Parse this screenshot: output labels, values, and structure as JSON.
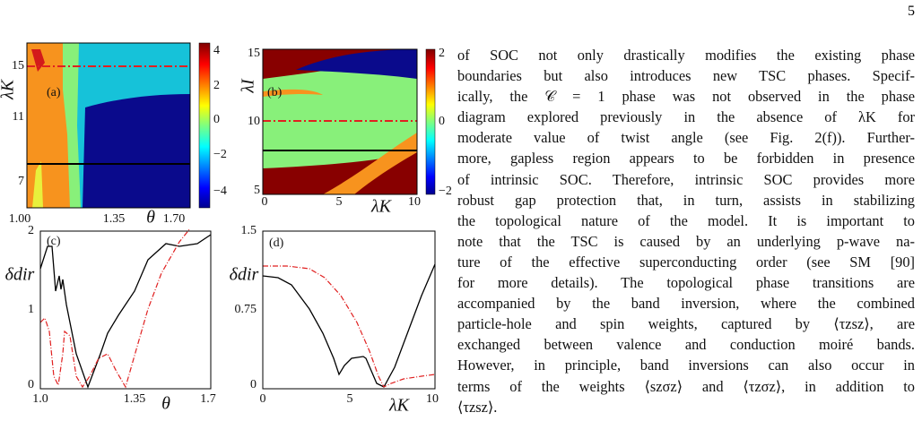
{
  "page_number": "5",
  "figure": {
    "panel_a": {
      "label": "(a)",
      "y_label": "λK",
      "x_label": "θ",
      "xticks": [
        "1.00",
        "1.35",
        "1.70"
      ],
      "yticks": [
        "15",
        "11",
        "7"
      ],
      "colorbar_ticks": [
        "4",
        "2",
        "0",
        "−2",
        "−4"
      ]
    },
    "panel_b": {
      "label": "(b)",
      "y_label": "λI",
      "x_label": "λK",
      "xticks": [
        "0",
        "5",
        "10"
      ],
      "yticks": [
        "15",
        "10",
        "5"
      ],
      "colorbar_ticks": [
        "2",
        "0",
        "−2"
      ]
    },
    "panel_c": {
      "label": "(c)",
      "y_label": "δdir",
      "x_label": "θ",
      "xticks": [
        "1.0",
        "1.35",
        "1.7"
      ],
      "yticks": [
        "2",
        "1",
        "0"
      ]
    },
    "panel_d": {
      "label": "(d)",
      "y_label": "δdir",
      "x_label": "λK",
      "xticks": [
        "0",
        "5",
        "10"
      ],
      "yticks": [
        "1.5",
        "0.75",
        "0"
      ]
    }
  },
  "paragraph": {
    "lines": [
      "of SOC not only drastically modifies the existing phase",
      "boundaries but also introduces new TSC phases. Specif-",
      "ically, the 𝒞 = 1 phase was not observed in the phase",
      "diagram explored previously in the absence of λK for",
      "moderate value of twist angle (see Fig. 2(f)). Further-",
      "more, gapless region appears to be forbidden in presence",
      "of intrinsic SOC. Therefore, intrinsic SOC provides more",
      "robust gap protection that, in turn, assists in stabilizing",
      "the topological nature of the model. It is important to",
      "note that the TSC is caused by an underlying p-wave na-",
      "ture of the effective superconducting order (see SM [90]",
      "for more details). The topological phase transitions are",
      "accompanied by the band inversion, where the combined",
      "particle-hole and spin weights, captured by ⟨τzsz⟩, are",
      "exchanged between valence and conduction moiré bands.",
      "However, in principle, band inversions can also occur in",
      "terms of the weights ⟨szσz⟩ and ⟨τzσz⟩, in addition to",
      "⟨τzsz⟩."
    ]
  }
}
